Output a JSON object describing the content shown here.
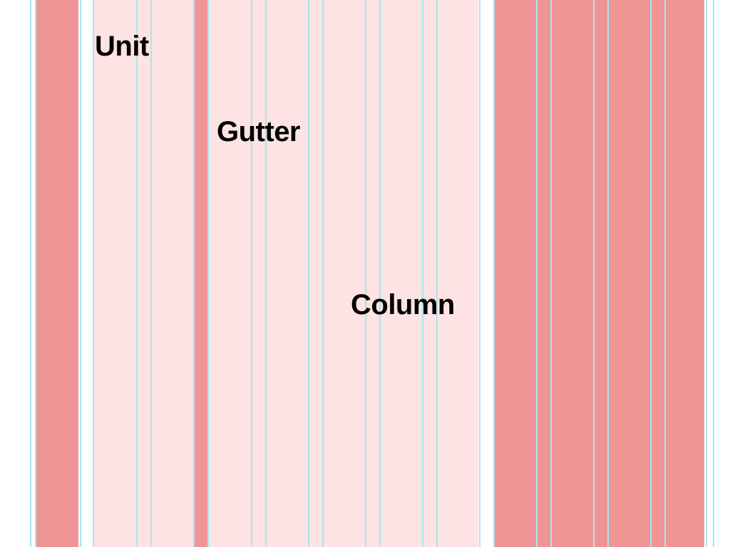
{
  "colors": {
    "background": "#ffffff",
    "light_band": "#fde3e3",
    "dark_band": "#f09595",
    "guide_line": "#a8e6ee",
    "gutter_line": "#ea8f8f",
    "label": "#000000"
  },
  "labels": {
    "unit": "Unit",
    "gutter": "Gutter",
    "column": "Column"
  }
}
